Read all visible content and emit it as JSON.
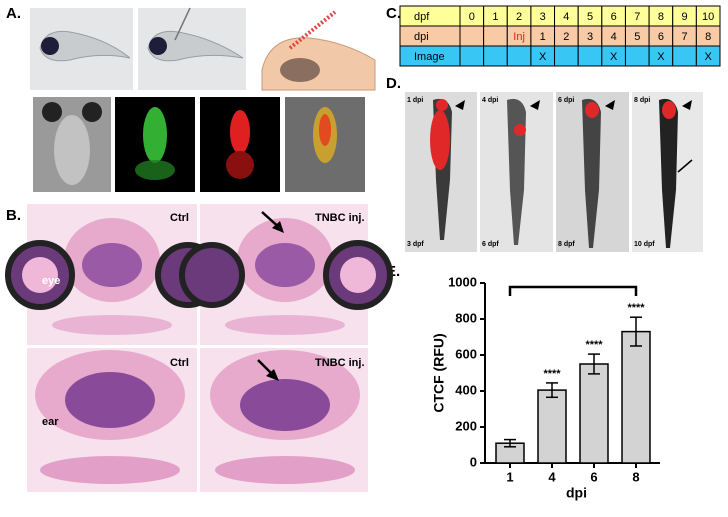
{
  "panels": {
    "a": "A.",
    "b": "B.",
    "c": "C.",
    "d": "D.",
    "e": "E."
  },
  "histology": {
    "top_left": "Ctrl",
    "top_right": "TNBC inj.",
    "eye": "eye",
    "bottom_left": "Ctrl",
    "bottom_right": "TNBC inj.",
    "ear": "ear"
  },
  "table": {
    "rows": [
      [
        "dpf",
        "0",
        "1",
        "2",
        "3",
        "4",
        "5",
        "6",
        "7",
        "8",
        "9",
        "10"
      ],
      [
        "dpi",
        null,
        null,
        "Inj",
        "1",
        "2",
        "3",
        "4",
        "5",
        "6",
        "7",
        "8"
      ],
      [
        "Image",
        null,
        null,
        null,
        "X",
        null,
        null,
        "X",
        null,
        "X",
        null,
        "X"
      ]
    ]
  },
  "imaging": {
    "top": [
      "1 dpi",
      "4 dpi",
      "6 dpi",
      "8 dpi"
    ],
    "bottom": [
      "3 dpf",
      "6 dpf",
      "8 dpf",
      "10 dpf"
    ]
  },
  "chart_data": {
    "type": "bar",
    "categories": [
      "1",
      "4",
      "6",
      "8"
    ],
    "values": [
      110,
      405,
      550,
      730
    ],
    "errors": [
      20,
      40,
      55,
      80
    ],
    "significance": [
      null,
      "****",
      "****",
      "****"
    ],
    "color": "#d3d3d3",
    "x_label": "dpi",
    "y_label": "CTCF (RFU)",
    "ylim": [
      0,
      1000
    ],
    "yticks": [
      0,
      200,
      400,
      600,
      800,
      1000
    ]
  }
}
